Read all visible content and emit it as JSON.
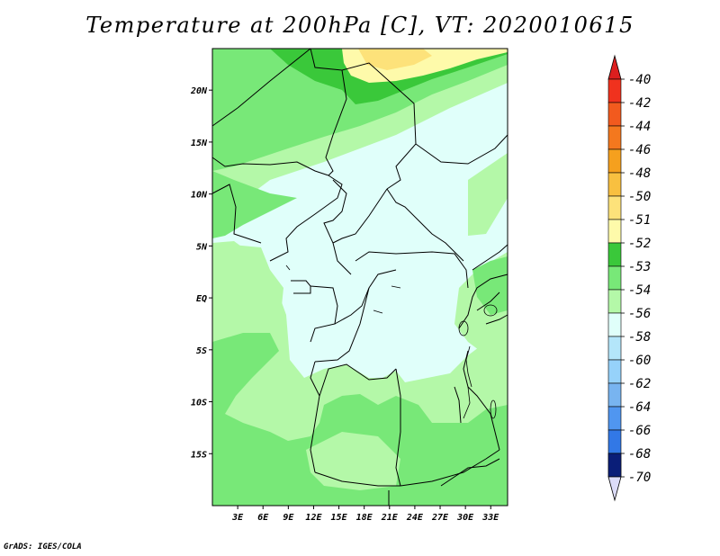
{
  "title": "Temperature at 200hPa [C], VT: 2020010615",
  "credit": "GrADS: IGES/COLA",
  "map": {
    "lon_range": [
      0,
      35
    ],
    "lat_range": [
      -20,
      24
    ],
    "lat_ticks": [
      {
        "value": 20,
        "label": "20N"
      },
      {
        "value": 15,
        "label": "15N"
      },
      {
        "value": 10,
        "label": "10N"
      },
      {
        "value": 5,
        "label": "5N"
      },
      {
        "value": 0,
        "label": "EQ"
      },
      {
        "value": -5,
        "label": "5S"
      },
      {
        "value": -10,
        "label": "10S"
      },
      {
        "value": -15,
        "label": "15S"
      }
    ],
    "lon_ticks": [
      {
        "value": 3,
        "label": "3E"
      },
      {
        "value": 6,
        "label": "6E"
      },
      {
        "value": 9,
        "label": "9E"
      },
      {
        "value": 12,
        "label": "12E"
      },
      {
        "value": 15,
        "label": "15E"
      },
      {
        "value": 18,
        "label": "18E"
      },
      {
        "value": 21,
        "label": "21E"
      },
      {
        "value": 24,
        "label": "24E"
      },
      {
        "value": 27,
        "label": "27E"
      },
      {
        "value": 30,
        "label": "30E"
      },
      {
        "value": 33,
        "label": "33E"
      }
    ]
  },
  "colorbar": {
    "levels": [
      {
        "label": "-40",
        "color": "#f0321e"
      },
      {
        "label": "-42",
        "color": "#f25a1e"
      },
      {
        "label": "-44",
        "color": "#f4781e"
      },
      {
        "label": "-46",
        "color": "#f5a01e"
      },
      {
        "label": "-48",
        "color": "#f8c040"
      },
      {
        "label": "-50",
        "color": "#fde27a"
      },
      {
        "label": "-51",
        "color": "#fefaaa"
      },
      {
        "label": "-52",
        "color": "#3ac83a"
      },
      {
        "label": "-53",
        "color": "#78e878"
      },
      {
        "label": "-54",
        "color": "#b4f8a8"
      },
      {
        "label": "-56",
        "color": "#e0fffa"
      },
      {
        "label": "-58",
        "color": "#b4e6fa"
      },
      {
        "label": "-60",
        "color": "#96d2fa"
      },
      {
        "label": "-62",
        "color": "#78b4f0"
      },
      {
        "label": "-64",
        "color": "#5096f0"
      },
      {
        "label": "-66",
        "color": "#3278e6"
      },
      {
        "label": "-68",
        "color": "#1e5ad2"
      },
      {
        "label": "-70",
        "color": "#1440b4"
      }
    ],
    "top_arrow_color": "#dc1e1e",
    "bottom_arrow_color": "#dcdcf8",
    "below_last_color": "#0a1e78"
  }
}
